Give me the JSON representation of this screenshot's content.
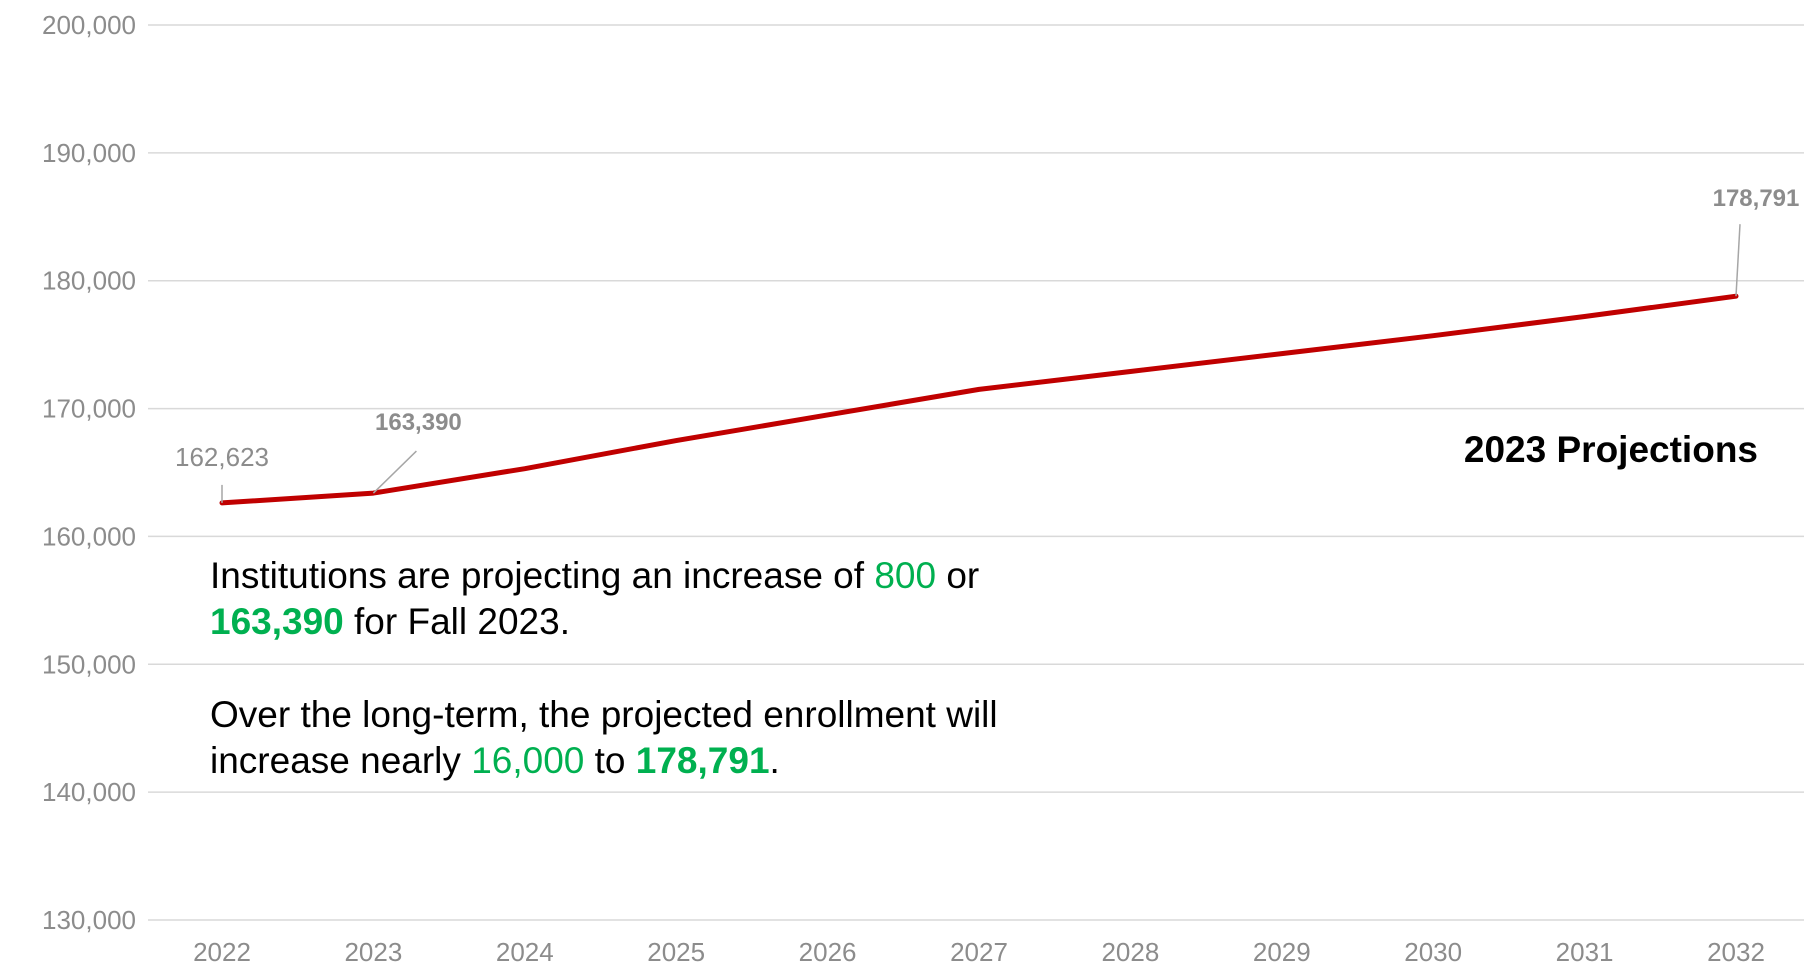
{
  "chart_data": {
    "type": "line",
    "title": "2023 Projections",
    "x": [
      "2022",
      "2023",
      "2024",
      "2025",
      "2026",
      "2027",
      "2028",
      "2029",
      "2030",
      "2031",
      "2032"
    ],
    "series": [
      {
        "name": "",
        "values": [
          162623,
          163390,
          165300,
          167500,
          169500,
          171500,
          172900,
          174300,
          175700,
          177200,
          178791
        ]
      }
    ],
    "ylim": [
      130000,
      200000
    ],
    "yticks": [
      "130,000",
      "140,000",
      "150,000",
      "160,000",
      "170,000",
      "180,000",
      "190,000",
      "200,000"
    ],
    "data_labels": [
      {
        "index": 0,
        "text": "162,623",
        "bold": false
      },
      {
        "index": 1,
        "text": "163,390",
        "bold": true
      },
      {
        "index": 10,
        "text": "178,791",
        "bold": true
      }
    ],
    "grid": true,
    "legend": "none",
    "colors": {
      "line": "#c00000",
      "highlight": "#00b050",
      "axis_text": "#8c8c8c",
      "grid": "#d9d9d9"
    }
  },
  "annotation": {
    "p1": {
      "a": "Institutions are projecting an increase of ",
      "b": "800",
      "c": " or",
      "d": "163,390",
      "e": " for Fall 2023."
    },
    "p2": {
      "a": "Over the long-term, the projected enrollment will",
      "b": "increase nearly ",
      "c": "16,000",
      "d": " to ",
      "e": "178,791",
      "f": "."
    }
  }
}
